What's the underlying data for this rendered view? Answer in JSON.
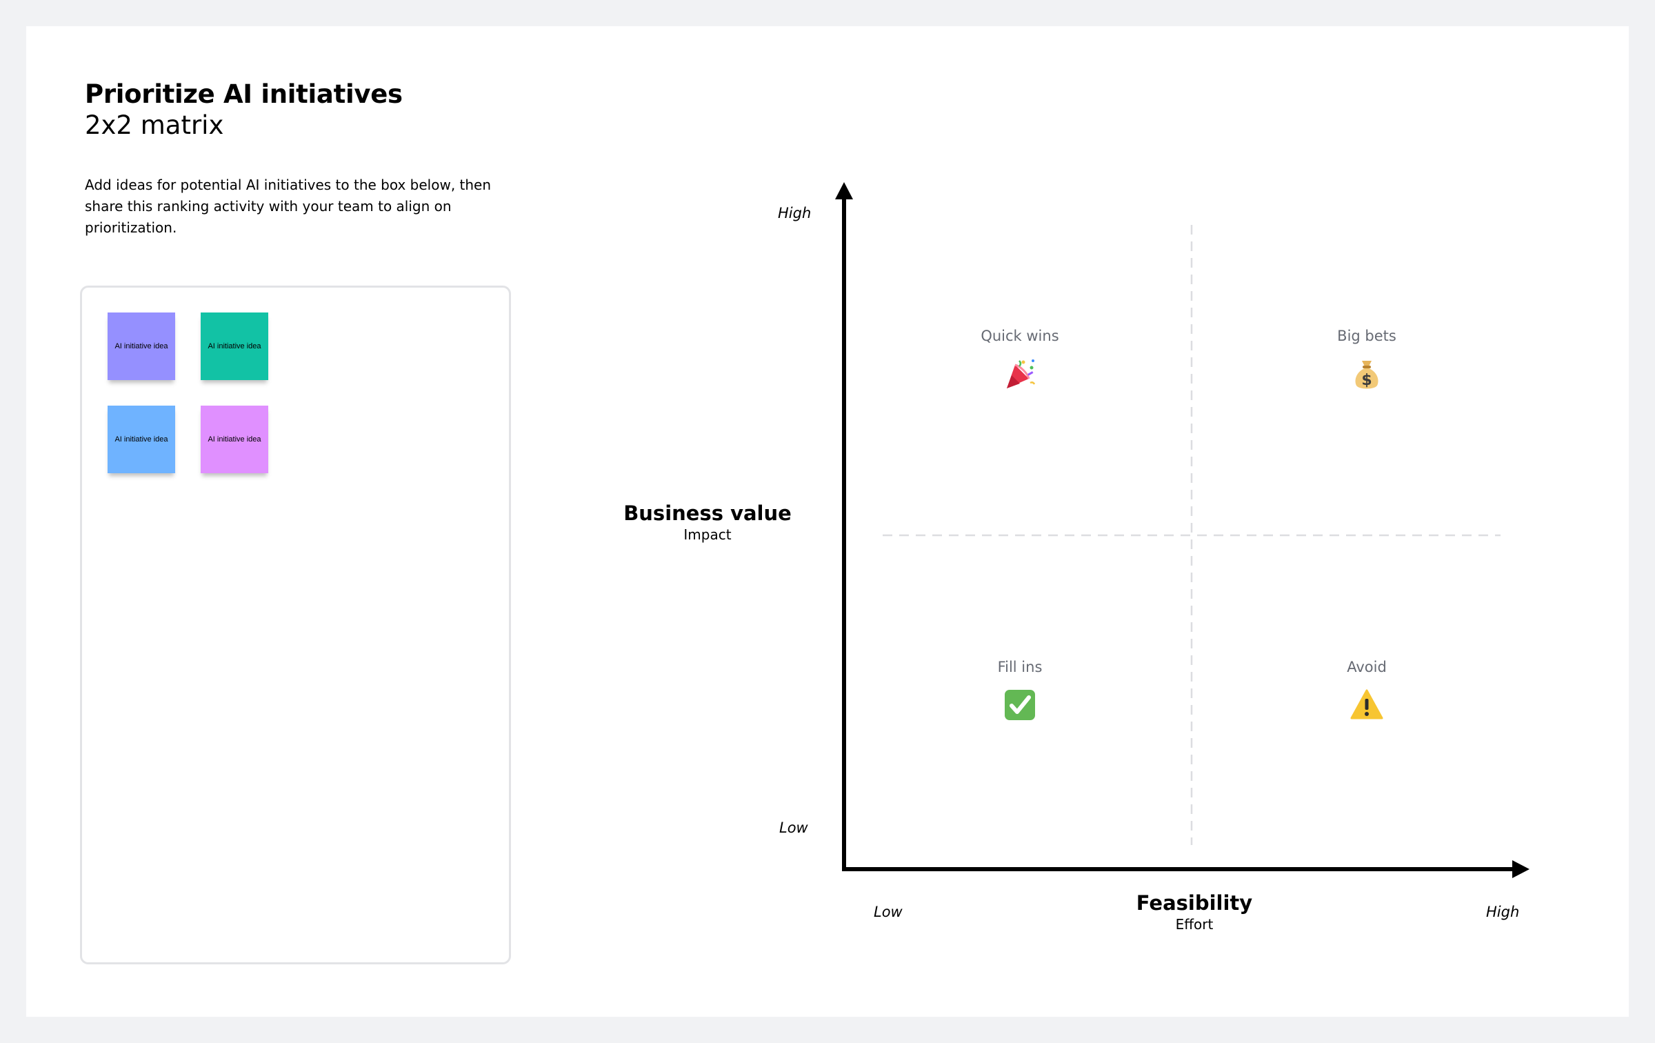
{
  "header": {
    "title": "Prioritize AI initiatives",
    "subtitle": "2x2 matrix",
    "instructions": "Add ideas for potential AI initiatives to the box below, then share this ranking activity with your team to align on prioritization."
  },
  "stickies": [
    {
      "text": "AI initiative idea",
      "color": "#9590ff"
    },
    {
      "text": "AI initiative idea",
      "color": "#12c2a5"
    },
    {
      "text": "AI initiative idea",
      "color": "#6fb3ff"
    },
    {
      "text": "AI initiative idea",
      "color": "#e090ff"
    }
  ],
  "matrix": {
    "y_axis": {
      "title": "Business value",
      "subtitle": "Impact",
      "high": "High",
      "low": "Low"
    },
    "x_axis": {
      "title": "Feasibility",
      "subtitle": "Effort",
      "low": "Low",
      "high": "High"
    },
    "quadrants": {
      "top_left": {
        "label": "Quick wins",
        "icon": "party-popper-icon"
      },
      "top_right": {
        "label": "Big bets",
        "icon": "money-bag-icon"
      },
      "bottom_left": {
        "label": "Fill ins",
        "icon": "check-mark-icon"
      },
      "bottom_right": {
        "label": "Avoid",
        "icon": "warning-icon"
      }
    }
  }
}
